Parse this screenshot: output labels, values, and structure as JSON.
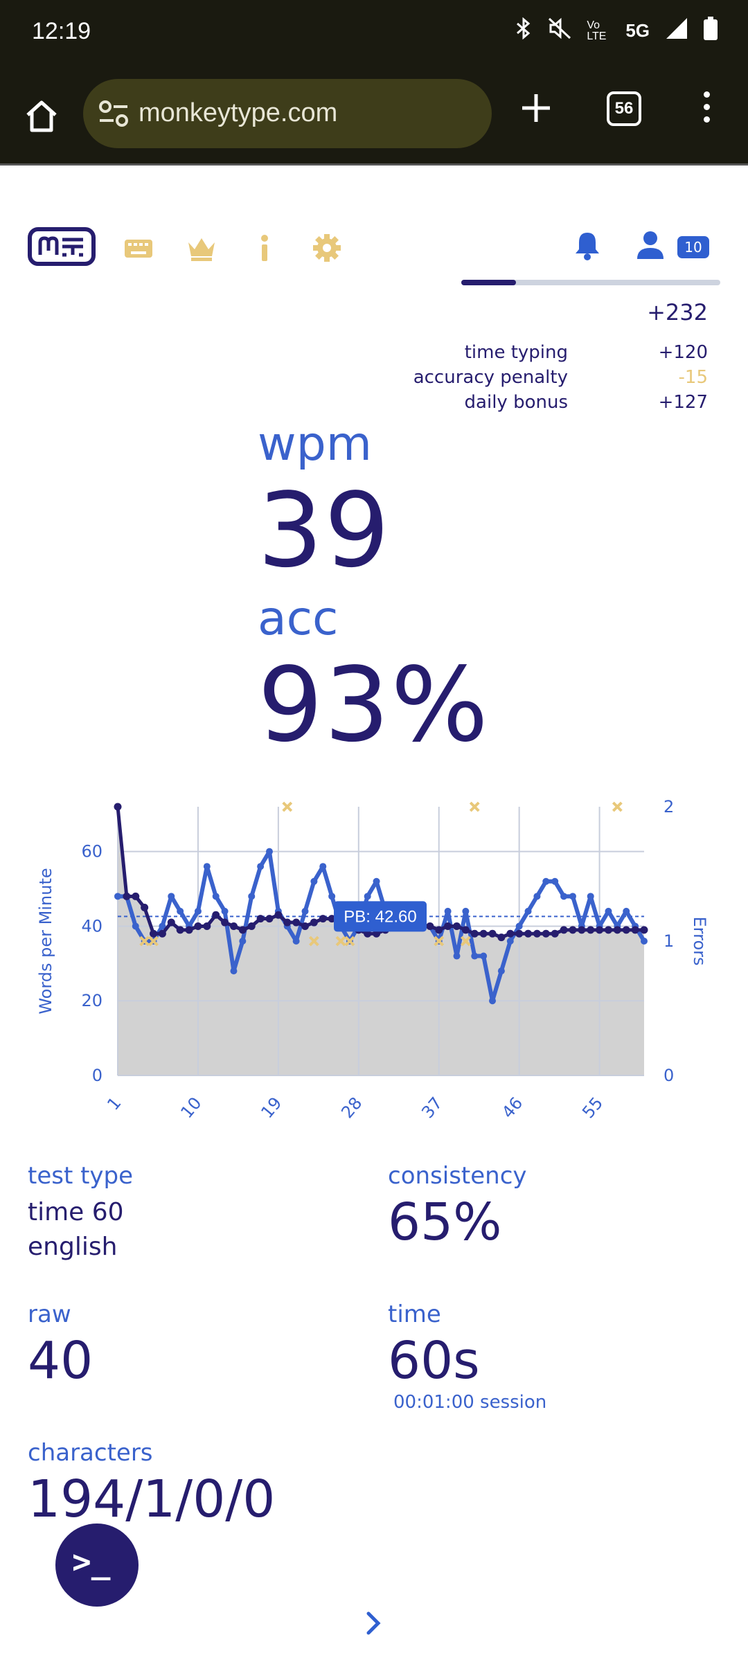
{
  "status_bar": {
    "time": "12:19",
    "network": "5G",
    "volte": "Vo LTE"
  },
  "browser": {
    "url": "monkeytype.com",
    "tab_count": "56"
  },
  "nav": {
    "level": "10",
    "xp_progress": 0.21,
    "xp_total": "+232",
    "xp_breakdown": [
      {
        "label": "time typing",
        "value": "+120"
      },
      {
        "label": "accuracy penalty",
        "value": "-15"
      },
      {
        "label": "daily bonus",
        "value": "+127"
      }
    ]
  },
  "result": {
    "wpm_label": "wpm",
    "wpm_value": "39",
    "acc_label": "acc",
    "acc_value": "93%"
  },
  "chart_data": {
    "type": "line",
    "ylabel": "Words per Minute",
    "y2label": "Errors",
    "x_ticks": [
      "1",
      "10",
      "19",
      "28",
      "37",
      "46",
      "55"
    ],
    "y_ticks": [
      "0",
      "20",
      "40",
      "60"
    ],
    "y2_ticks": [
      "0",
      "1",
      "2"
    ],
    "ylim": [
      0,
      72
    ],
    "y2lim": [
      0,
      2
    ],
    "xlim": [
      1,
      60
    ],
    "pb_value": 42.6,
    "pb_label": "PB: 42.60",
    "x": [
      1,
      2,
      3,
      4,
      5,
      6,
      7,
      8,
      9,
      10,
      11,
      12,
      13,
      14,
      15,
      16,
      17,
      18,
      19,
      20,
      21,
      22,
      23,
      24,
      25,
      26,
      27,
      28,
      29,
      30,
      31,
      32,
      33,
      34,
      35,
      36,
      37,
      38,
      39,
      40,
      41,
      42,
      43,
      44,
      45,
      46,
      47,
      48,
      49,
      50,
      51,
      52,
      53,
      54,
      55,
      56,
      57,
      58,
      59,
      60
    ],
    "series": [
      {
        "name": "wpm",
        "color": "#3a62cc",
        "values": [
          48,
          48,
          40,
          36,
          36,
          40,
          48,
          44,
          40,
          44,
          56,
          48,
          44,
          28,
          36,
          48,
          56,
          60,
          44,
          40,
          36,
          44,
          52,
          56,
          48,
          40,
          36,
          40,
          48,
          52,
          44,
          40,
          40,
          40,
          40,
          40,
          36,
          44,
          32,
          44,
          32,
          32,
          20,
          28,
          36,
          40,
          44,
          48,
          52,
          52,
          48,
          48,
          40,
          48,
          40,
          44,
          40,
          44,
          40,
          36
        ]
      },
      {
        "name": "raw",
        "color": "#261d6e",
        "values": [
          72,
          48,
          48,
          45,
          38,
          38,
          41,
          39,
          39,
          40,
          40,
          43,
          41,
          40,
          39,
          40,
          42,
          42,
          43,
          41,
          41,
          40,
          41,
          42,
          42,
          41,
          40,
          39,
          38,
          38,
          39,
          40,
          40,
          40,
          40,
          40,
          39,
          40,
          40,
          39,
          38,
          38,
          38,
          37,
          38,
          38,
          38,
          38,
          38,
          38,
          39,
          39,
          39,
          39,
          39,
          39,
          39,
          39,
          39,
          39
        ]
      }
    ],
    "errors": [
      {
        "x": 4,
        "count": 1
      },
      {
        "x": 5,
        "count": 1
      },
      {
        "x": 20,
        "count": 2
      },
      {
        "x": 23,
        "count": 1
      },
      {
        "x": 26,
        "count": 1
      },
      {
        "x": 27,
        "count": 1
      },
      {
        "x": 37,
        "count": 1
      },
      {
        "x": 40,
        "count": 1
      },
      {
        "x": 41,
        "count": 2
      },
      {
        "x": 57,
        "count": 2
      }
    ],
    "colors": {
      "grid": "#c8cedc",
      "fill": "#d0d0d0",
      "error": "#e8c87a"
    }
  },
  "stats": {
    "test_type_label": "test type",
    "test_type_line1": "time 60",
    "test_type_line2": "english",
    "consistency_label": "consistency",
    "consistency_value": "65%",
    "raw_label": "raw",
    "raw_value": "40",
    "time_label": "time",
    "time_value": "60s",
    "time_session": "00:01:00 session",
    "characters_label": "characters",
    "characters_value": "194/1/0/0"
  },
  "fab": {
    "icon": "terminal-icon",
    "glyph": ">_"
  }
}
